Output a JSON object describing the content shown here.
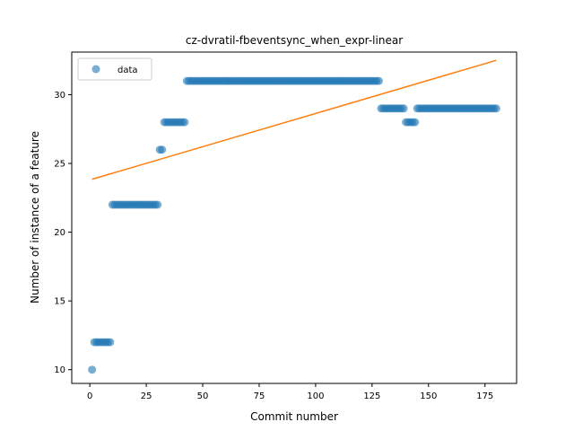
{
  "chart_data": {
    "type": "scatter",
    "title": "cz-dvratil-fbeventsync_when_expr-linear",
    "xlabel": "Commit number",
    "ylabel": "Number of instance of a feature",
    "xlim": [
      -8,
      189
    ],
    "ylim": [
      9.0,
      33.1
    ],
    "xticks": [
      0,
      25,
      50,
      75,
      100,
      125,
      150,
      175
    ],
    "yticks": [
      10,
      15,
      20,
      25,
      30
    ],
    "grid": false,
    "legend": {
      "position": "top-left",
      "entries": [
        "data"
      ]
    },
    "colors": {
      "data": "#1f77b4",
      "fit": "#ff7f0e"
    },
    "segments": [
      {
        "x_start": 1,
        "x_end": 1,
        "y": 10
      },
      {
        "x_start": 2,
        "x_end": 9,
        "y": 12
      },
      {
        "x_start": 10,
        "x_end": 30,
        "y": 22
      },
      {
        "x_start": 31,
        "x_end": 32,
        "y": 26
      },
      {
        "x_start": 33,
        "x_end": 42,
        "y": 28
      },
      {
        "x_start": 43,
        "x_end": 128,
        "y": 31
      },
      {
        "x_start": 129,
        "x_end": 139,
        "y": 29
      },
      {
        "x_start": 140,
        "x_end": 144,
        "y": 28
      },
      {
        "x_start": 145,
        "x_end": 180,
        "y": 29
      }
    ],
    "fit_line": {
      "x": [
        1,
        180
      ],
      "y": [
        23.85,
        32.5
      ]
    }
  }
}
